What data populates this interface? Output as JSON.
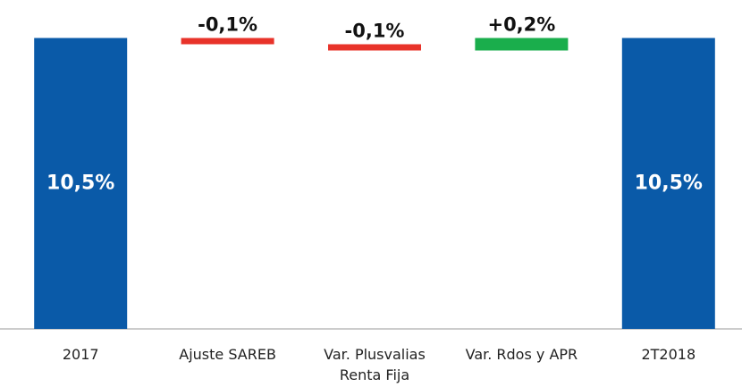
{
  "chart_data": {
    "type": "waterfall",
    "categories": [
      "2017",
      "Ajuste SAREB",
      "Var. Plusvalias Renta Fija",
      "Var. Rdos y APR",
      "2T2018"
    ],
    "values": [
      10.5,
      -0.1,
      -0.1,
      0.2,
      10.5
    ],
    "value_labels": [
      "10,5%",
      "-0,1%",
      "-0,1%",
      "+0,2%",
      "10,5%"
    ],
    "is_total": [
      true,
      false,
      false,
      false,
      true
    ],
    "colors": [
      "#0a5aa8",
      "#e8332a",
      "#e8332a",
      "#1aae4c",
      "#0a5aa8"
    ],
    "ylim": [
      5.85,
      10.7
    ]
  }
}
